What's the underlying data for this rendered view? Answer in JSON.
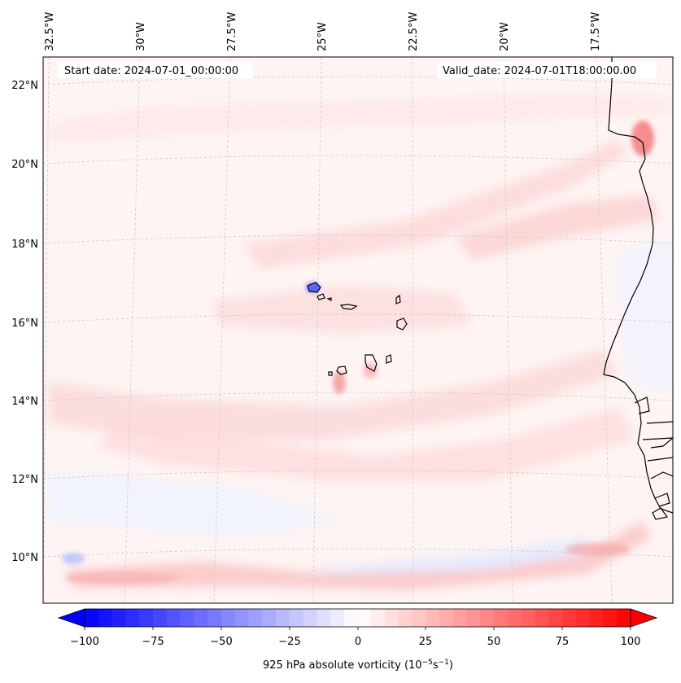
{
  "map": {
    "start_date_label": "Start date: 2024-07-01_00:00:00",
    "valid_date_label": "Valid_date: 2024-07-01T18:00:00.00",
    "lon_labels": [
      "32.5°W",
      "30°W",
      "27.5°W",
      "25°W",
      "22.5°W",
      "20°W",
      "17.5°W"
    ],
    "lat_labels": [
      "22°N",
      "20°N",
      "18°N",
      "16°N",
      "14°N",
      "12°N",
      "10°N"
    ],
    "field": "925 hPa absolute vorticity"
  },
  "colorbar": {
    "tick_labels": [
      "−100",
      "−75",
      "−50",
      "−25",
      "0",
      "25",
      "50",
      "75",
      "100"
    ],
    "label_prefix": "925 hPa absolute vorticity (10",
    "label_exp1": "−5",
    "label_mid": "s",
    "label_exp2": "−1",
    "label_suffix": ")",
    "vmin": -100,
    "vmax": 100,
    "n_levels": 40,
    "neg_color": "#0000ff",
    "pos_color": "#ff0000"
  },
  "colors": {
    "coastline": "#000000",
    "gridline": "#c8c8c8"
  }
}
